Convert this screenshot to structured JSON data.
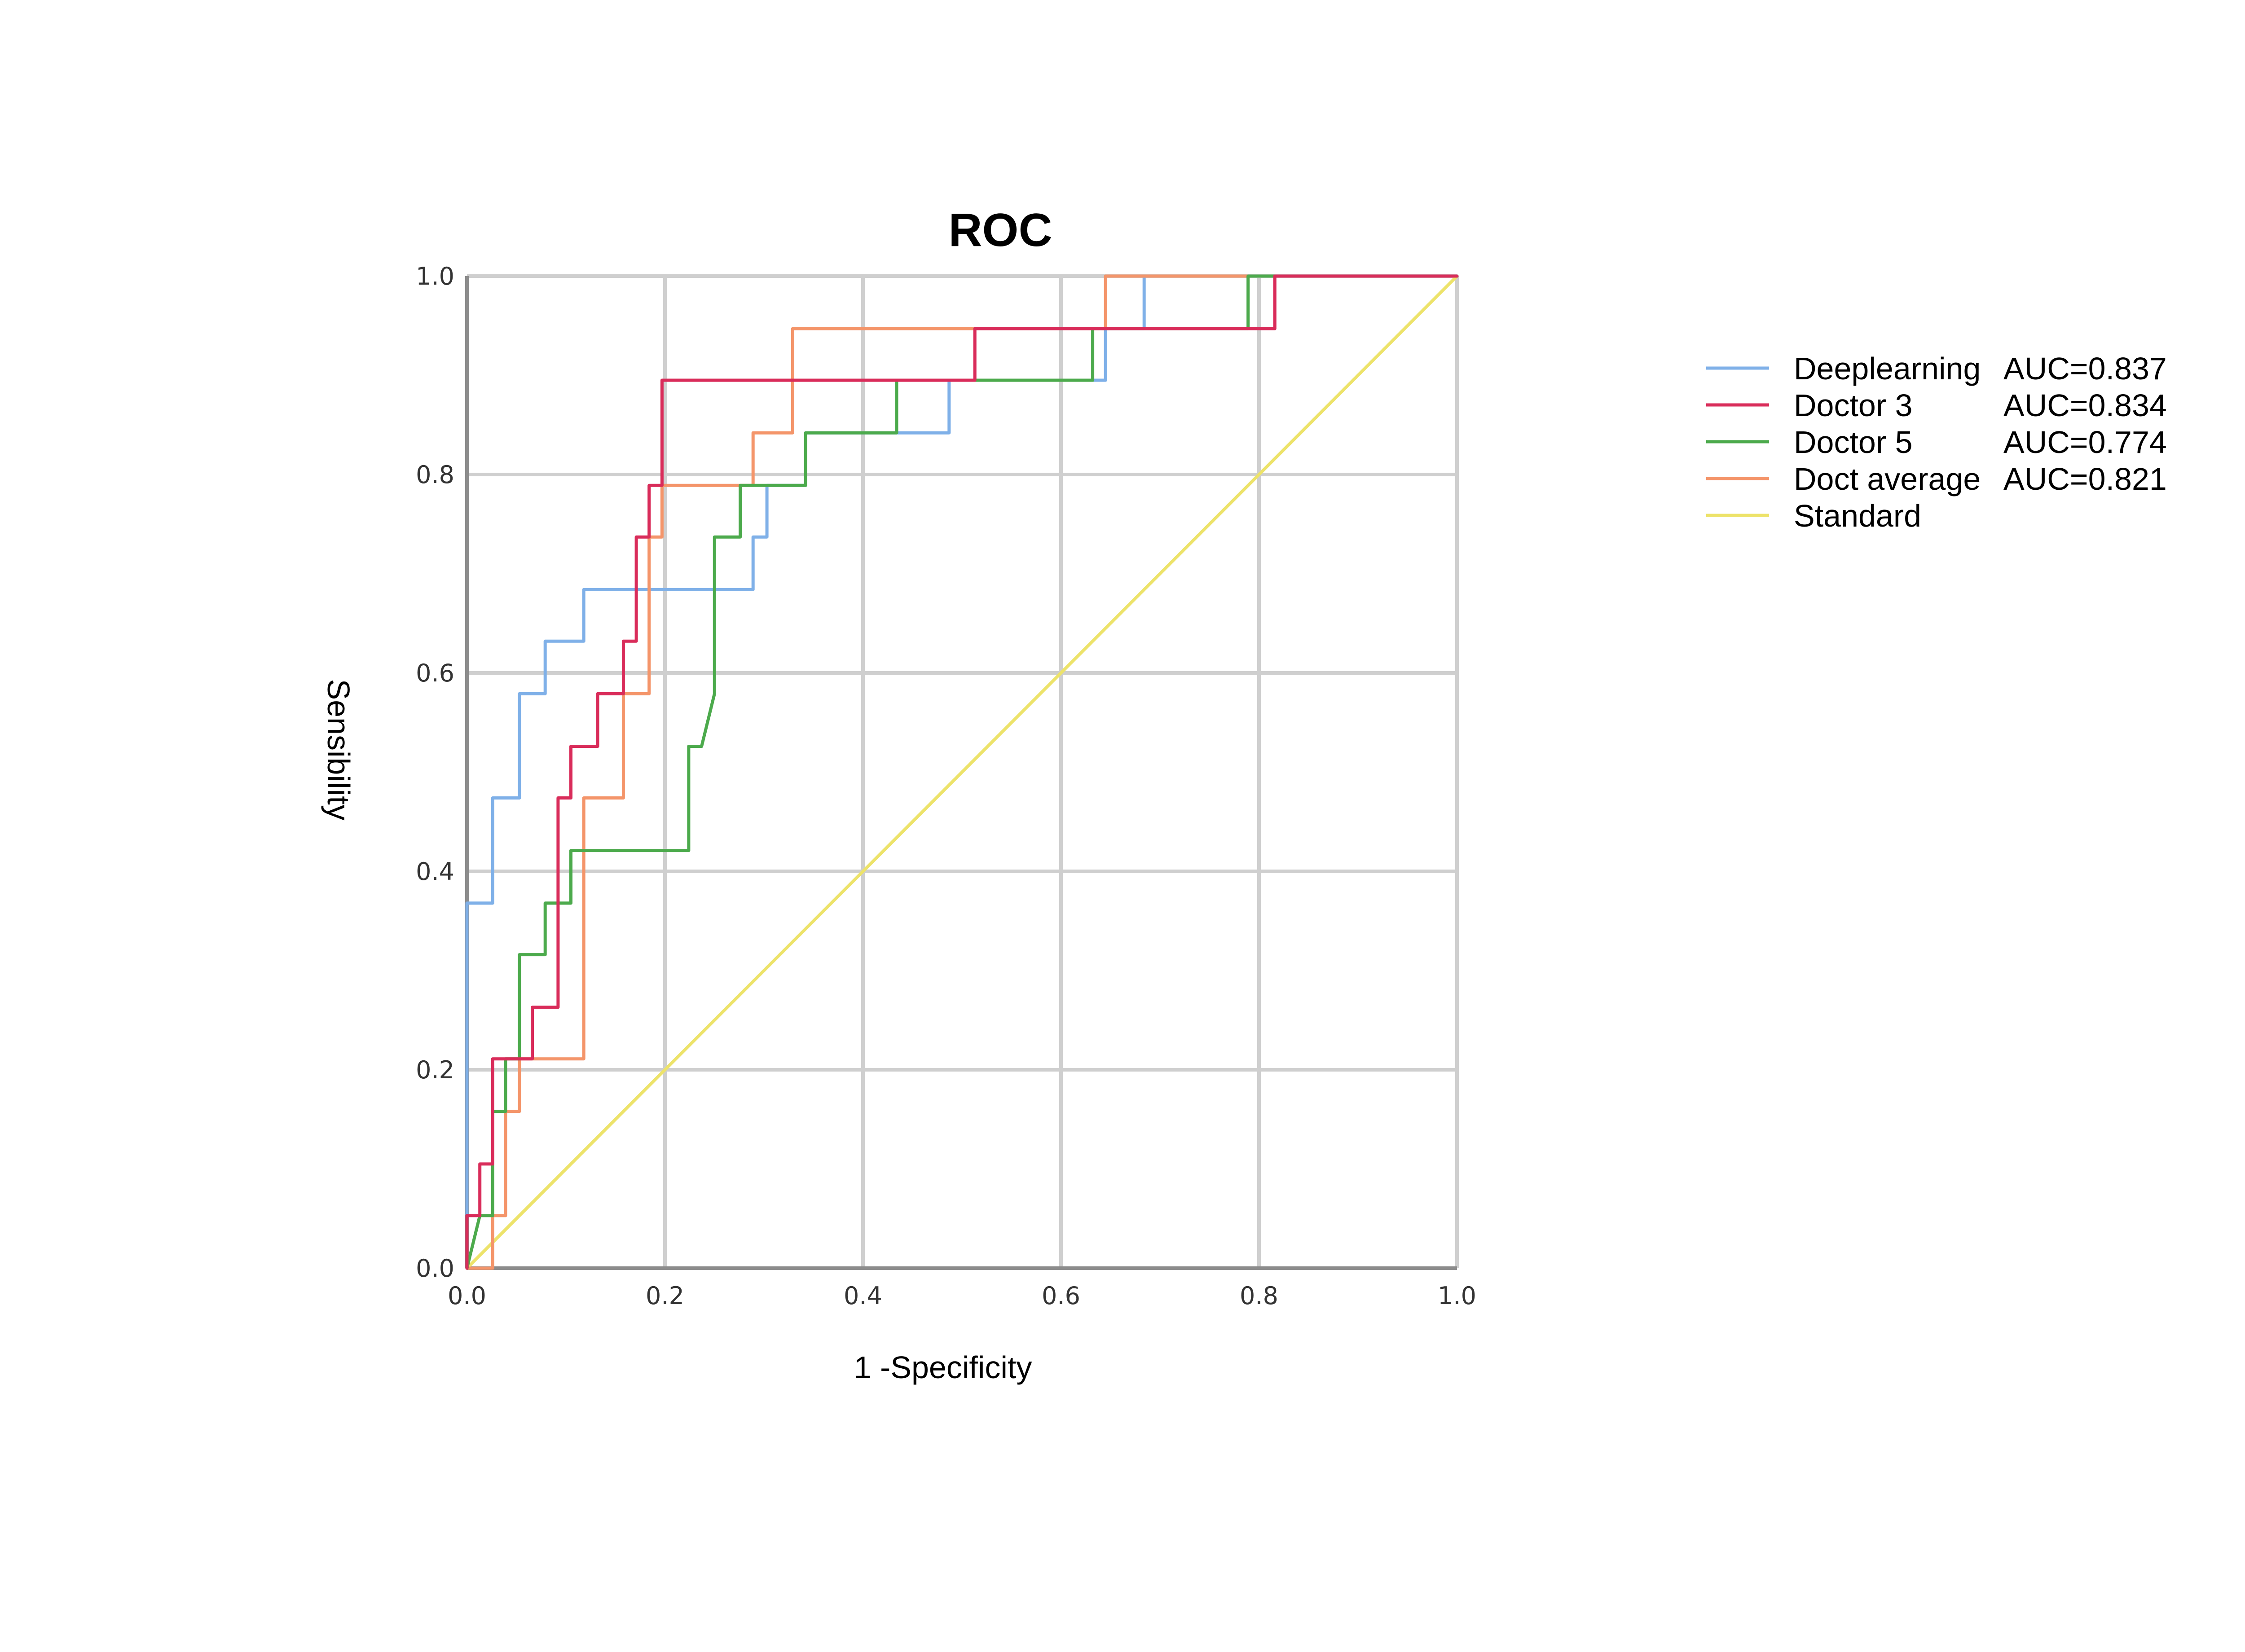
{
  "chart_data": {
    "type": "line",
    "title": "ROC",
    "xlabel": "1 -Specificity",
    "ylabel": "Sensibility",
    "xlim": [
      0,
      1
    ],
    "ylim": [
      0,
      1
    ],
    "xticks": [
      "0.0",
      "0.2",
      "0.4",
      "0.6",
      "0.8",
      "1.0"
    ],
    "yticks": [
      "0.0",
      "0.2",
      "0.4",
      "0.6",
      "0.8",
      "1.0"
    ],
    "grid": true,
    "legend_position": "right",
    "series": [
      {
        "name": "Deeplearning",
        "auc_label": "AUC=0.837",
        "color": "#7fb0e8",
        "x": [
          0,
          0,
          0.026,
          0.026,
          0.053,
          0.053,
          0.079,
          0.079,
          0.118,
          0.118,
          0.289,
          0.289,
          0.303,
          0.303,
          0.342,
          0.342,
          0.487,
          0.487,
          0.513,
          0.513,
          0.645,
          0.645,
          0.684,
          0.684,
          0.789,
          0.789,
          1.0
        ],
        "y": [
          0,
          0.368,
          0.368,
          0.474,
          0.474,
          0.579,
          0.579,
          0.632,
          0.632,
          0.684,
          0.684,
          0.737,
          0.737,
          0.789,
          0.789,
          0.842,
          0.842,
          0.895,
          0.895,
          0.895,
          0.895,
          0.947,
          0.947,
          1.0,
          1.0,
          1.0,
          1.0
        ]
      },
      {
        "name": "Doctor 3",
        "auc_label": "AUC=0.834",
        "color": "#d92c5a",
        "x": [
          0,
          0,
          0.013,
          0.013,
          0.026,
          0.026,
          0.039,
          0.039,
          0.066,
          0.066,
          0.092,
          0.092,
          0.105,
          0.105,
          0.132,
          0.132,
          0.158,
          0.158,
          0.171,
          0.171,
          0.184,
          0.184,
          0.197,
          0.197,
          0.513,
          0.513,
          0.789,
          0.789,
          0.816,
          0.816,
          1.0
        ],
        "y": [
          0,
          0.053,
          0.053,
          0.105,
          0.105,
          0.211,
          0.211,
          0.211,
          0.211,
          0.263,
          0.263,
          0.474,
          0.474,
          0.526,
          0.526,
          0.579,
          0.579,
          0.632,
          0.632,
          0.737,
          0.737,
          0.789,
          0.789,
          0.895,
          0.895,
          0.947,
          0.947,
          0.947,
          0.947,
          1.0,
          1.0
        ]
      },
      {
        "name": "Doctor 5",
        "auc_label": "AUC=0.774",
        "color": "#4caa4c",
        "x": [
          0,
          0.013,
          0.026,
          0.026,
          0.039,
          0.039,
          0.053,
          0.053,
          0.079,
          0.079,
          0.105,
          0.105,
          0.224,
          0.224,
          0.237,
          0.25,
          0.25,
          0.276,
          0.276,
          0.342,
          0.342,
          0.434,
          0.434,
          0.632,
          0.632,
          0.789,
          0.789,
          1.0
        ],
        "y": [
          0,
          0.053,
          0.053,
          0.158,
          0.158,
          0.211,
          0.211,
          0.316,
          0.316,
          0.368,
          0.368,
          0.421,
          0.421,
          0.526,
          0.526,
          0.579,
          0.737,
          0.737,
          0.789,
          0.789,
          0.842,
          0.842,
          0.895,
          0.895,
          0.947,
          0.947,
          1.0,
          1.0
        ]
      },
      {
        "name": "Doct average",
        "auc_label": "AUC=0.821",
        "color": "#f4956a",
        "x": [
          0,
          0.026,
          0.026,
          0.039,
          0.039,
          0.053,
          0.053,
          0.118,
          0.118,
          0.158,
          0.158,
          0.184,
          0.184,
          0.197,
          0.197,
          0.289,
          0.289,
          0.329,
          0.329,
          0.645,
          0.645,
          1.0
        ],
        "y": [
          0,
          0,
          0.053,
          0.053,
          0.158,
          0.158,
          0.211,
          0.211,
          0.474,
          0.474,
          0.579,
          0.579,
          0.737,
          0.737,
          0.789,
          0.789,
          0.842,
          0.842,
          0.947,
          0.947,
          1.0,
          1.0
        ]
      },
      {
        "name": "Standard",
        "auc_label": "",
        "color": "#ede36a",
        "x": [
          0,
          1
        ],
        "y": [
          0,
          1
        ]
      }
    ]
  }
}
